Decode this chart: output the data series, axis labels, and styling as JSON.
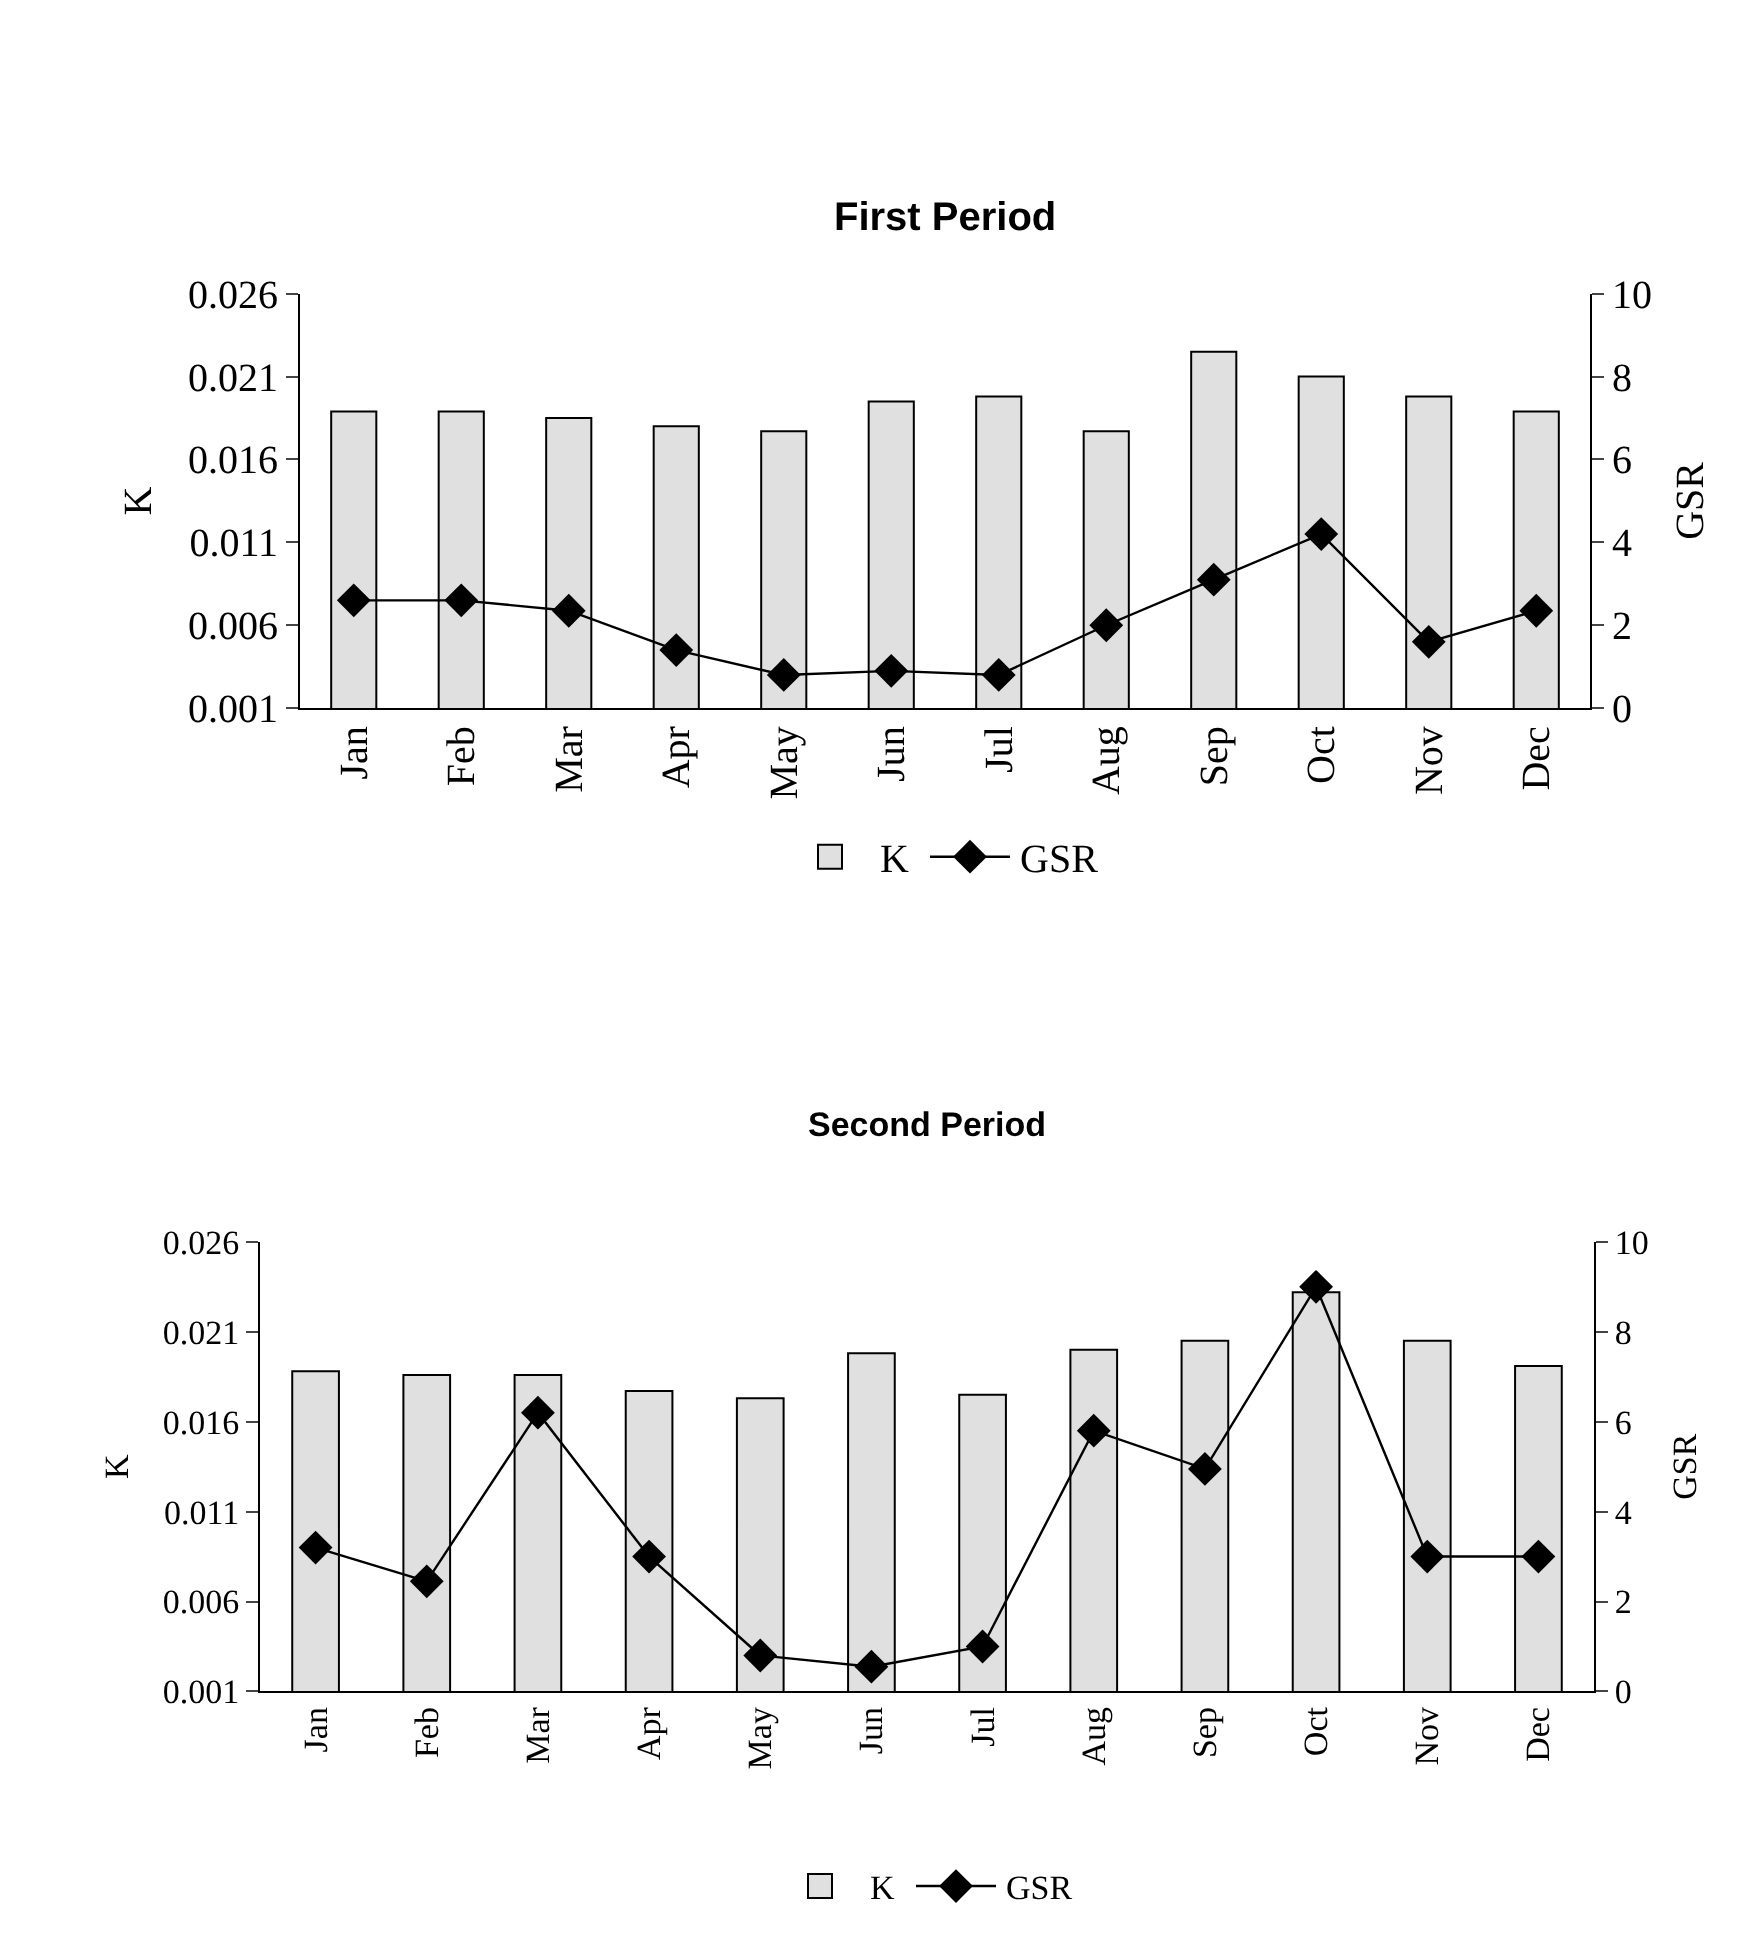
{
  "chart_data": [
    {
      "type": "bar",
      "title": "First Period",
      "ylabel": "K",
      "y2label": "GSR",
      "categories": [
        "Jan",
        "Feb",
        "Mar",
        "Apr",
        "May",
        "Jun",
        "Jul",
        "Aug",
        "Sep",
        "Oct",
        "Nov",
        "Dec"
      ],
      "series": [
        {
          "name": "K",
          "color": "#e0e0e0",
          "values": [
            0.0189,
            0.0189,
            0.0185,
            0.018,
            0.0177,
            0.0195,
            0.0198,
            0.0177,
            0.0225,
            0.021,
            0.0198,
            0.0189
          ]
        },
        {
          "name": "GSR",
          "type": "line",
          "axis": "y2",
          "color": "#000000",
          "values": [
            2.6,
            2.6,
            2.35,
            1.4,
            0.8,
            0.9,
            0.8,
            2.0,
            3.1,
            4.2,
            1.6,
            2.35
          ]
        }
      ],
      "ylim": [
        0.001,
        0.026
      ],
      "yticks": [
        0.001,
        0.006,
        0.011,
        0.016,
        0.021,
        0.026
      ],
      "y2lim": [
        0,
        10
      ],
      "y2ticks": [
        0,
        2,
        4,
        6,
        8,
        10
      ],
      "grid": false,
      "legend": "bottom",
      "marker": "diamond",
      "line_style": "solid"
    },
    {
      "type": "bar",
      "title": "Second Period",
      "ylabel": "K",
      "y2label": "GSR",
      "categories": [
        "Jan",
        "Feb",
        "Mar",
        "Apr",
        "May",
        "Jun",
        "Jul",
        "Aug",
        "Sep",
        "Oct",
        "Nov",
        "Dec"
      ],
      "series": [
        {
          "name": "K",
          "color": "#e0e0e0",
          "values": [
            0.0188,
            0.0186,
            0.0186,
            0.0177,
            0.0173,
            0.0198,
            0.0175,
            0.02,
            0.0205,
            0.0232,
            0.0205,
            0.0191
          ]
        },
        {
          "name": "GSR",
          "type": "line",
          "axis": "y2",
          "color": "#000000",
          "values": [
            3.2,
            2.45,
            6.2,
            3.0,
            0.8,
            0.55,
            1.0,
            5.8,
            4.95,
            9.0,
            3.0,
            3.0
          ]
        }
      ],
      "ylim": [
        0.001,
        0.026
      ],
      "yticks": [
        0.001,
        0.006,
        0.011,
        0.016,
        0.021,
        0.026
      ],
      "y2lim": [
        0,
        10
      ],
      "y2ticks": [
        0,
        2,
        4,
        6,
        8,
        10
      ],
      "grid": false,
      "legend": "bottom",
      "marker": "diamond",
      "line_style": "solid"
    }
  ]
}
